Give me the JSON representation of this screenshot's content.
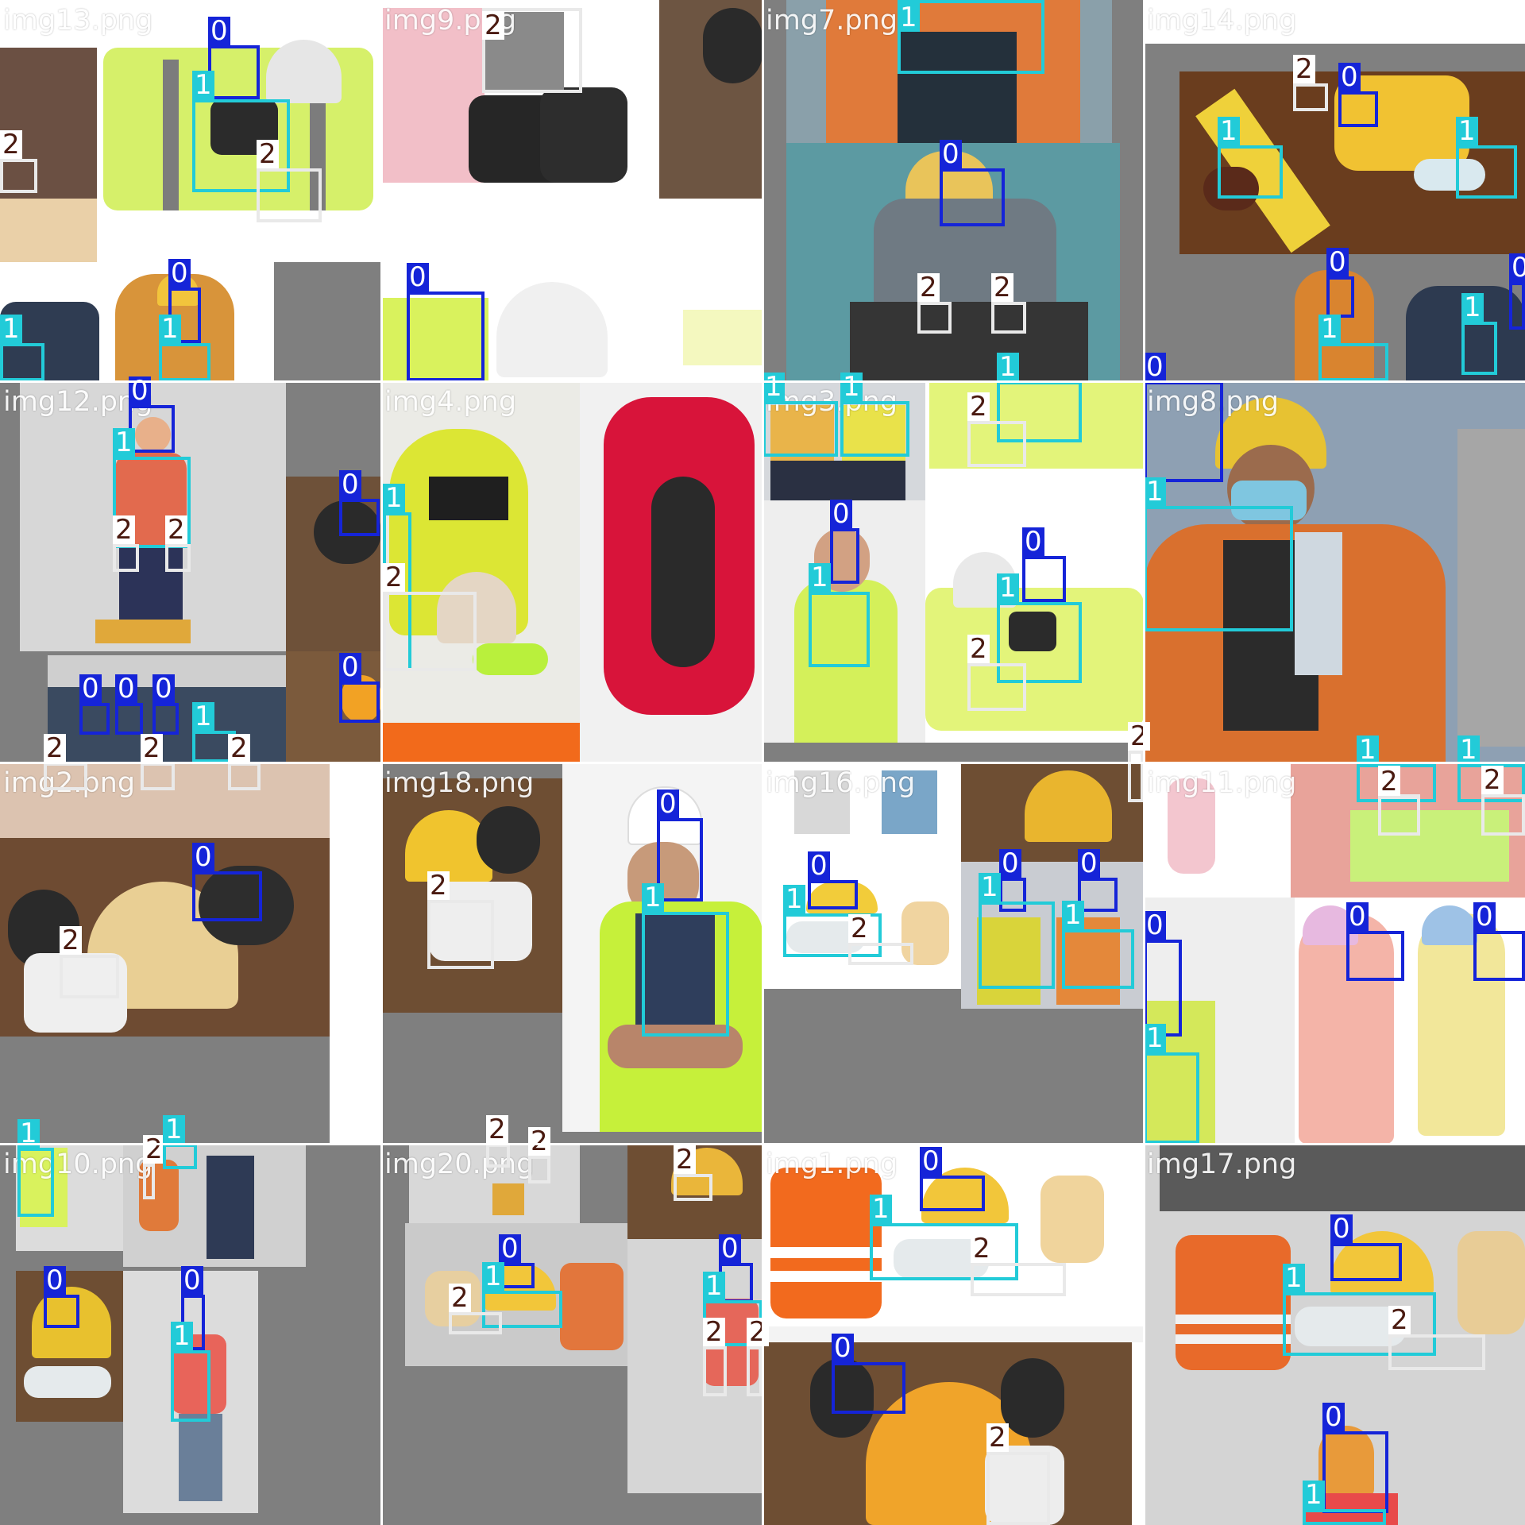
{
  "mosaic": {
    "class_colors": {
      "0": "#1524d8",
      "1": "#22cbd8",
      "2": "#e9e9e9"
    },
    "label_colors": {
      "0": "#1524d8",
      "1": "#22cbd8",
      "2": "#ffffff"
    },
    "label_text_colors": {
      "0": "#ffffff",
      "1": "#ffffff",
      "2": "#4a1a10"
    },
    "tiles": [
      {
        "name": "img13.png"
      },
      {
        "name": "img9.png"
      },
      {
        "name": "img7.png"
      },
      {
        "name": "img14.png"
      },
      {
        "name": "img12.png"
      },
      {
        "name": "img4.png"
      },
      {
        "name": "img3.png"
      },
      {
        "name": "img8.png"
      },
      {
        "name": "img2.png"
      },
      {
        "name": "img18.png"
      },
      {
        "name": "img16.png"
      },
      {
        "name": "img11.png"
      },
      {
        "name": "img10.png"
      },
      {
        "name": "img20.png"
      },
      {
        "name": "img1.png"
      },
      {
        "name": "img17.png"
      }
    ]
  }
}
